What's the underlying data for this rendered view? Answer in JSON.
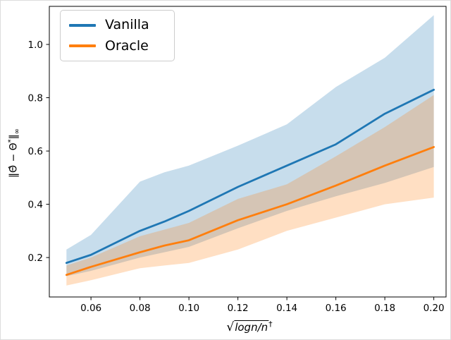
{
  "figure": {
    "background": "#ffffff",
    "frame_color": "#000000",
    "outer_border_color": "#dcdcdc"
  },
  "legend": {
    "position": "upper-left",
    "background": "#ffffff",
    "border_color": "#cccccc"
  },
  "axes": {
    "xlabel": {
      "radical": "√",
      "radicand": "logn/n",
      "sup": "†"
    },
    "ylabel": {
      "body": "‖Θ̂ − Θ",
      "sup": "*",
      "close": "‖",
      "sub": "∞"
    },
    "xtick_labels": [
      "0.06",
      "0.08",
      "0.10",
      "0.12",
      "0.14",
      "0.16",
      "0.18",
      "0.20"
    ],
    "ytick_labels": [
      "0.2",
      "0.4",
      "0.6",
      "0.8",
      "1.0"
    ]
  },
  "chart_data": {
    "type": "line",
    "title": "",
    "xlabel": "sqrt(log n / n)^dagger",
    "ylabel": "||Theta_hat - Theta*||_inf",
    "grid": false,
    "legend_position": "upper left",
    "band_alpha": 0.25,
    "xlim": [
      0.043,
      0.205
    ],
    "ylim": [
      0.052,
      1.143
    ],
    "xticks": [
      0.06,
      0.08,
      0.1,
      0.12,
      0.14,
      0.16,
      0.18,
      0.2
    ],
    "yticks": [
      0.2,
      0.4,
      0.6,
      0.8,
      1.0
    ],
    "x": [
      0.05,
      0.06,
      0.08,
      0.09,
      0.1,
      0.12,
      0.14,
      0.16,
      0.18,
      0.2
    ],
    "series": [
      {
        "name": "Vanilla",
        "color": "#1f77b4",
        "values": [
          0.18,
          0.21,
          0.3,
          0.335,
          0.375,
          0.465,
          0.545,
          0.625,
          0.74,
          0.83
        ],
        "band_upper": [
          0.23,
          0.285,
          0.485,
          0.52,
          0.545,
          0.62,
          0.7,
          0.84,
          0.95,
          1.11
        ],
        "band_lower": [
          0.13,
          0.15,
          0.2,
          0.22,
          0.24,
          0.31,
          0.375,
          0.43,
          0.48,
          0.54
        ]
      },
      {
        "name": "Oracle",
        "color": "#ff7f0e",
        "values": [
          0.135,
          0.165,
          0.22,
          0.245,
          0.265,
          0.34,
          0.4,
          0.47,
          0.545,
          0.615
        ],
        "band_upper": [
          0.17,
          0.2,
          0.28,
          0.305,
          0.33,
          0.42,
          0.475,
          0.58,
          0.69,
          0.81
        ],
        "band_lower": [
          0.095,
          0.115,
          0.16,
          0.17,
          0.18,
          0.23,
          0.3,
          0.35,
          0.4,
          0.425
        ]
      }
    ]
  }
}
